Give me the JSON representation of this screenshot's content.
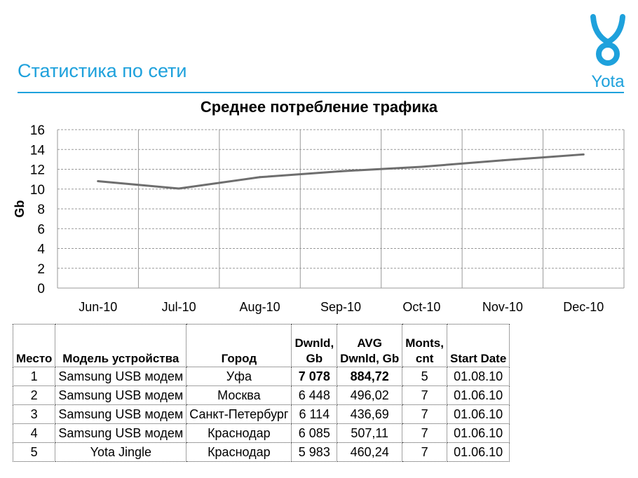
{
  "header": {
    "title": "Статистика по сети",
    "logo_text": "Yota",
    "brand_color": "#1ea1dc"
  },
  "chart_data": {
    "type": "line",
    "title": "Среднее потребление трафика",
    "xlabel": "",
    "ylabel": "Gb",
    "categories": [
      "Jun-10",
      "Jul-10",
      "Aug-10",
      "Sep-10",
      "Oct-10",
      "Nov-10",
      "Dec-10"
    ],
    "values": [
      10.8,
      10.05,
      11.2,
      11.8,
      12.25,
      12.9,
      13.5
    ],
    "ylim": [
      0,
      16
    ],
    "yticks": [
      0,
      2,
      4,
      6,
      8,
      10,
      12,
      14,
      16
    ],
    "grid": true,
    "line_color": "#6e6e6e"
  },
  "table": {
    "headers": [
      [
        "Место"
      ],
      [
        "Модель устройства"
      ],
      [
        "Город"
      ],
      [
        "Dwnld,",
        "Gb"
      ],
      [
        "AVG",
        "Dwnld, Gb"
      ],
      [
        "Monts,",
        "cnt"
      ],
      [
        "Start Date"
      ]
    ],
    "rows": [
      [
        "1",
        "Samsung USB модем",
        "Уфа",
        "7 078",
        "884,72",
        "5",
        "01.08.10"
      ],
      [
        "2",
        "Samsung USB модем",
        "Москва",
        "6 448",
        "496,02",
        "7",
        "01.06.10"
      ],
      [
        "3",
        "Samsung USB модем",
        "Санкт-Петербург",
        "6 114",
        "436,69",
        "7",
        "01.06.10"
      ],
      [
        "4",
        "Samsung USB модем",
        "Краснодар",
        "6 085",
        "507,11",
        "7",
        "01.06.10"
      ],
      [
        "5",
        "Yota Jingle",
        "Краснодар",
        "5 983",
        "460,24",
        "7",
        "01.06.10"
      ]
    ]
  }
}
